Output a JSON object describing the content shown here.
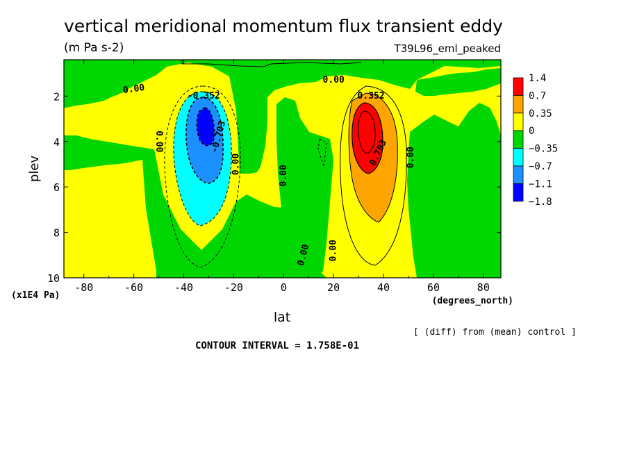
{
  "chart_data": {
    "type": "contour",
    "title": "vertical meridional momentum flux transient eddy",
    "units": "(m Pa s-2)",
    "run_label": "T39L96_eml_peaked",
    "xlabel": "lat",
    "x_units": "(degrees_north)",
    "ylabel": "plev",
    "y_units": "(x1E4 Pa)",
    "x_ticks": [
      "-80",
      "-60",
      "-40",
      "-20",
      "0",
      "20",
      "40",
      "60",
      "80"
    ],
    "x_tick_values": [
      -80,
      -60,
      -40,
      -20,
      0,
      20,
      40,
      60,
      80
    ],
    "y_ticks": [
      "2",
      "4",
      "6",
      "8",
      "10"
    ],
    "y_tick_values": [
      2,
      4,
      6,
      8,
      10
    ],
    "xlim": [
      -88,
      87
    ],
    "ylim": [
      10,
      0.4
    ],
    "colorbar": {
      "labels": [
        "1.4",
        "0.7",
        "0.35",
        "0",
        "−0.35",
        "−0.7",
        "−1.1",
        "−1.8"
      ],
      "colors": [
        "#ff0000",
        "#ffa500",
        "#ffff00",
        "#00d700",
        "#00ffff",
        "#1e90ff",
        "#0000ff"
      ]
    },
    "contour_labels": [
      {
        "text": "0.00",
        "lat": -60,
        "p": 1.7,
        "rot": -8
      },
      {
        "text": "0.00",
        "lat": 20,
        "p": 1.3,
        "rot": 0
      },
      {
        "text": "-0.352",
        "lat": -32,
        "p": 2.0,
        "rot": 0
      },
      {
        "text": "0.352",
        "lat": 35,
        "p": 2.0,
        "rot": 0
      },
      {
        "text": "-0.703",
        "lat": -26,
        "p": 3.8,
        "rot": -75
      },
      {
        "text": "0.703",
        "lat": 38,
        "p": 4.5,
        "rot": -65
      },
      {
        "text": "0.00",
        "lat": -50,
        "p": 4.0,
        "rot": 90
      },
      {
        "text": "0.00",
        "lat": -19,
        "p": 5.0,
        "rot": -90
      },
      {
        "text": "0.00",
        "lat": 0,
        "p": 5.5,
        "rot": -90
      },
      {
        "text": "0.00",
        "lat": 51,
        "p": 4.7,
        "rot": -90
      },
      {
        "text": "0.00",
        "lat": 8,
        "p": 9.0,
        "rot": -75
      },
      {
        "text": "0.00",
        "lat": 20,
        "p": 8.8,
        "rot": -90
      }
    ],
    "footnote": "[ (diff) from (mean) control ]",
    "contour_interval": "CONTOUR INTERVAL = 1.758E-01"
  }
}
